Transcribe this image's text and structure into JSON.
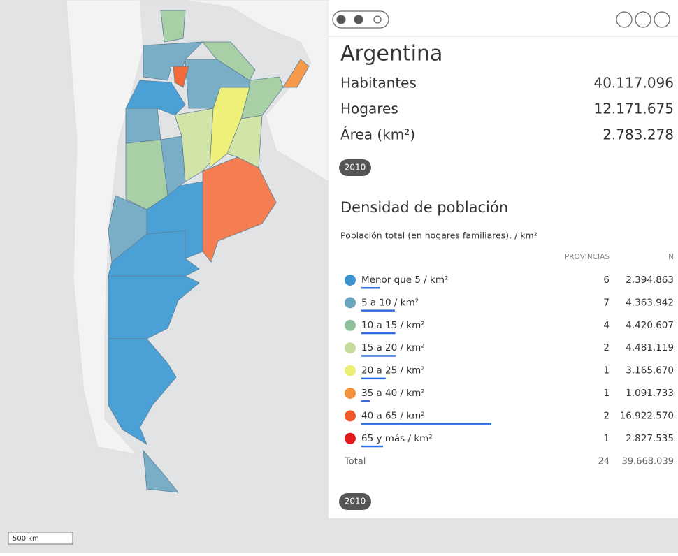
{
  "summary": {
    "title": "Argentina",
    "stats": [
      {
        "label": "Habitantes",
        "value": "40.117.096"
      },
      {
        "label": "Hogares",
        "value": "12.171.675"
      },
      {
        "label": "Área (km²)",
        "value": "2.783.278"
      }
    ],
    "year": "2010"
  },
  "legend": {
    "title": "Densidad de población",
    "subtitle": "Población total (en hogares familiares). / km²",
    "headers": [
      "PROVINCIAS",
      "N"
    ],
    "rows": [
      {
        "label": "Menor que 5 / km²",
        "color": "#3a93cf",
        "provincias": 6,
        "n": 2394863,
        "n_label": "2.394.863"
      },
      {
        "label": "5 a 10 / km²",
        "color": "#6ba6bf",
        "provincias": 7,
        "n": 4363942,
        "n_label": "4.363.942"
      },
      {
        "label": "10 a 15 / km²",
        "color": "#8fc09b",
        "provincias": 4,
        "n": 4420607,
        "n_label": "4.420.607"
      },
      {
        "label": "15 a 20 / km²",
        "color": "#c6dc9f",
        "provincias": 2,
        "n": 4481119,
        "n_label": "4.481.119"
      },
      {
        "label": "20 a 25 / km²",
        "color": "#ebef73",
        "provincias": 1,
        "n": 3165670,
        "n_label": "3.165.670"
      },
      {
        "label": "35 a 40 / km²",
        "color": "#f5913a",
        "provincias": 1,
        "n": 1091733,
        "n_label": "1.091.733"
      },
      {
        "label": "40 a 65 / km²",
        "color": "#f05a2a",
        "provincias": 2,
        "n": 16922570,
        "n_label": "16.922.570"
      },
      {
        "label": "65 y más / km²",
        "color": "#e31a1c",
        "provincias": 1,
        "n": 2827535,
        "n_label": "2.827.535"
      }
    ],
    "total": {
      "label": "Total",
      "provincias": 24,
      "n_label": "39.668.039"
    },
    "year": "2010"
  },
  "scale": "500 km"
}
